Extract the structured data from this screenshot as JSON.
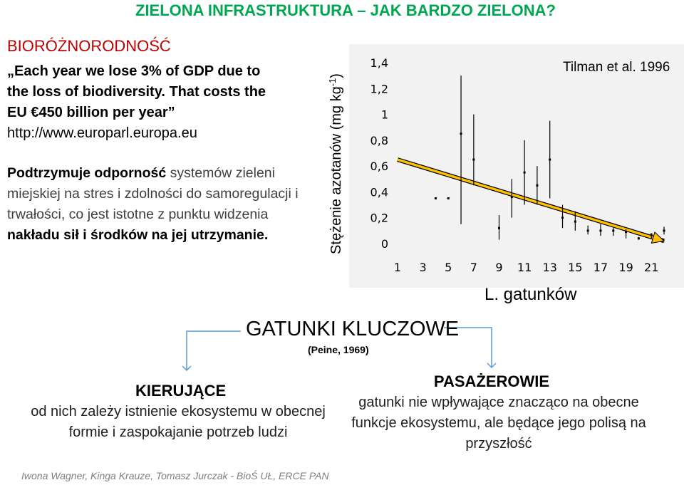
{
  "header": {
    "title": "ZIELONA INFRASTRUKTURA – JAK BARDZO ZIELONA?"
  },
  "biodiversity": {
    "heading": "BIORÓŻNORODNOŚĆ",
    "quote_lines": [
      "„Each year we lose 3% of GDP due to",
      "the loss of biodiversity. That costs the",
      "EU €450 billion per year”"
    ],
    "url": "http://www.europarl.europa.eu"
  },
  "paragraph": {
    "p1_bold": "Podtrzymuje odporność",
    "p1_rest": " systemów zieleni miejskiej na stres i zdolności do samoregulacji i trwałości, co jest istotne z punktu widzenia ",
    "p2_bold": "nakładu sił i środków na jej utrzymanie."
  },
  "chart_data": {
    "type": "scatter",
    "ylabel": "Stężenie azotanów (mg kg-1)",
    "xlabel": "L. gatunków",
    "annotation": "Tilman et al. 1996",
    "ylim": [
      0,
      1.4
    ],
    "xlim": [
      1,
      21
    ],
    "y_ticks": [
      "1,4",
      "1,2",
      "1",
      "0,8",
      "0,6",
      "0,4",
      "0,2",
      "0"
    ],
    "y_tick_values": [
      1.4,
      1.2,
      1.0,
      0.8,
      0.6,
      0.4,
      0.2,
      0
    ],
    "x_ticks": [
      "1",
      "3",
      "5",
      "7",
      "9",
      "11",
      "13",
      "15",
      "17",
      "19",
      "21"
    ],
    "x_tick_values": [
      1,
      3,
      5,
      7,
      9,
      11,
      13,
      15,
      17,
      19,
      21
    ],
    "points": [
      {
        "x": 4.0,
        "y": 0.35,
        "lo": 0.35,
        "hi": 0.35
      },
      {
        "x": 5.0,
        "y": 0.35,
        "lo": 0.35,
        "hi": 0.35
      },
      {
        "x": 6.0,
        "y": 0.85,
        "lo": 0.15,
        "hi": 1.3
      },
      {
        "x": 7.0,
        "y": 0.65,
        "lo": 0.45,
        "hi": 1.0
      },
      {
        "x": 9.0,
        "y": 0.12,
        "lo": 0.03,
        "hi": 0.22
      },
      {
        "x": 10.0,
        "y": 0.36,
        "lo": 0.2,
        "hi": 0.5
      },
      {
        "x": 11.0,
        "y": 0.55,
        "lo": 0.3,
        "hi": 0.8
      },
      {
        "x": 12.0,
        "y": 0.45,
        "lo": 0.3,
        "hi": 0.6
      },
      {
        "x": 13.0,
        "y": 0.65,
        "lo": 0.35,
        "hi": 0.95
      },
      {
        "x": 14.0,
        "y": 0.2,
        "lo": 0.12,
        "hi": 0.3
      },
      {
        "x": 15.0,
        "y": 0.17,
        "lo": 0.1,
        "hi": 0.25
      },
      {
        "x": 16.0,
        "y": 0.1,
        "lo": 0.07,
        "hi": 0.14
      },
      {
        "x": 17.0,
        "y": 0.1,
        "lo": 0.06,
        "hi": 0.15
      },
      {
        "x": 18.0,
        "y": 0.1,
        "lo": 0.06,
        "hi": 0.12
      },
      {
        "x": 19.0,
        "y": 0.09,
        "lo": 0.04,
        "hi": 0.11
      },
      {
        "x": 20.0,
        "y": 0.04,
        "lo": 0.03,
        "hi": 0.05
      },
      {
        "x": 21.0,
        "y": 0.07,
        "lo": 0.04,
        "hi": 0.08
      },
      {
        "x": 22.0,
        "y": 0.1,
        "lo": 0.07,
        "hi": 0.13
      }
    ],
    "trend": {
      "x": [
        1,
        22
      ],
      "y": [
        0.65,
        0.02
      ],
      "color": "#ffc000"
    },
    "grid": false
  },
  "key_species": {
    "title": "GATUNKI KLUCZOWE",
    "citation": "(Peine, 1969)"
  },
  "drivers": {
    "title": "KIERUJĄCE",
    "description": "od nich zależy istnienie ekosystemu w obecnej formie i zaspokajanie potrzeb ludzi"
  },
  "passengers": {
    "title": "PASAŻEROWIE",
    "description": "gatunki nie wpływające znacząco na obecne funkcje ekosystemu, ale będące jego polisą na przyszłość"
  },
  "footer": {
    "authors": "Iwona Wagner, Kinga Krauze, Tomasz Jurczak - BioŚ UŁ, ERCE PAN"
  },
  "colors": {
    "title": "#00a651",
    "heading": "#c00000",
    "connector": "#5b9bd5",
    "panel": "#f2f2f2"
  }
}
